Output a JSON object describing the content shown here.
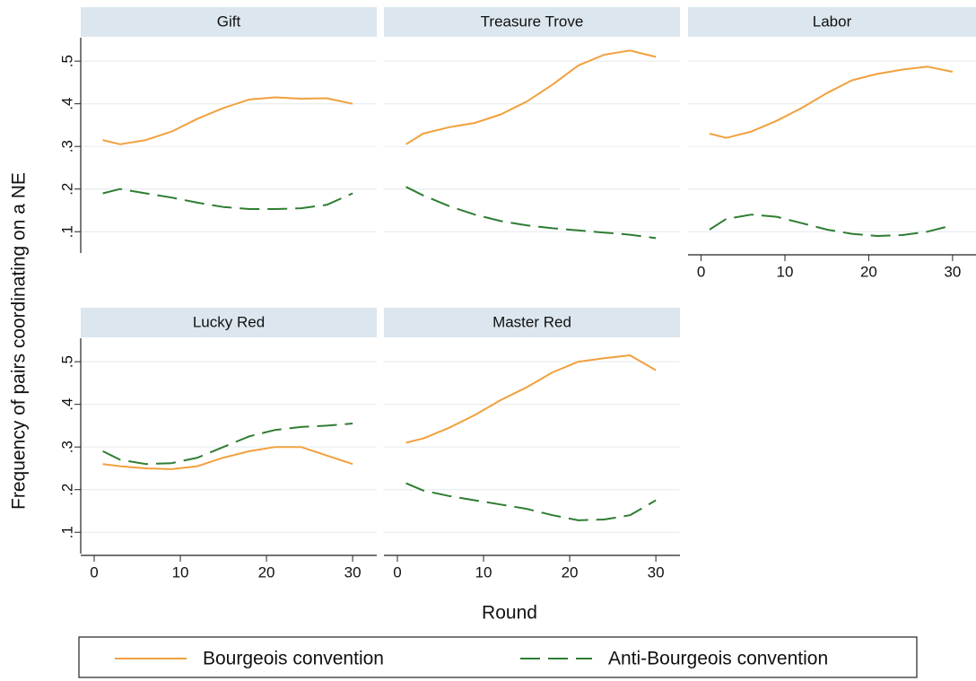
{
  "ylabel": "Frequency of pairs coordinating on a NE",
  "xlabel": "Round",
  "chart_data": [
    {
      "type": "line",
      "title": "Gift",
      "x": [
        1,
        3,
        6,
        9,
        12,
        15,
        18,
        21,
        24,
        27,
        30
      ],
      "series": [
        {
          "name": "Bourgeois convention",
          "color": "#f2a03d",
          "line_style": "solid",
          "values": [
            0.315,
            0.305,
            0.315,
            0.335,
            0.365,
            0.39,
            0.41,
            0.415,
            0.412,
            0.413,
            0.4
          ]
        },
        {
          "name": "Anti-Bourgeois convention",
          "color": "#2e7d32",
          "line_style": "dashed",
          "values": [
            0.19,
            0.2,
            0.19,
            0.18,
            0.168,
            0.158,
            0.153,
            0.153,
            0.155,
            0.163,
            0.19
          ]
        }
      ],
      "xlim": [
        -1.56,
        32.8
      ],
      "ylim": [
        0.05,
        0.555
      ],
      "xticks": [
        0,
        10,
        20,
        30
      ],
      "yticks": [
        {
          "value": 0.1,
          "label": ".1"
        },
        {
          "value": 0.2,
          "label": ".2"
        },
        {
          "value": 0.3,
          "label": ".3"
        },
        {
          "value": 0.4,
          "label": ".4"
        },
        {
          "value": 0.5,
          "label": ".5"
        }
      ],
      "grid": true
    },
    {
      "type": "line",
      "title": "Treasure Trove",
      "x": [
        1,
        3,
        6,
        9,
        12,
        15,
        18,
        21,
        24,
        27,
        30
      ],
      "series": [
        {
          "name": "Bourgeois convention",
          "color": "#f2a03d",
          "line_style": "solid",
          "values": [
            0.305,
            0.33,
            0.345,
            0.355,
            0.375,
            0.405,
            0.445,
            0.49,
            0.515,
            0.525,
            0.51
          ]
        },
        {
          "name": "Anti-Bourgeois convention",
          "color": "#2e7d32",
          "line_style": "dashed",
          "values": [
            0.205,
            0.185,
            0.16,
            0.14,
            0.125,
            0.115,
            0.108,
            0.103,
            0.098,
            0.093,
            0.085
          ]
        }
      ],
      "xlim": [
        -1.56,
        32.8
      ],
      "ylim": [
        0.05,
        0.555
      ],
      "xticks": [
        0,
        10,
        20,
        30
      ],
      "yticks": [
        {
          "value": 0.1,
          "label": ".1"
        },
        {
          "value": 0.2,
          "label": ".2"
        },
        {
          "value": 0.3,
          "label": ".3"
        },
        {
          "value": 0.4,
          "label": ".4"
        },
        {
          "value": 0.5,
          "label": ".5"
        }
      ],
      "grid": true
    },
    {
      "type": "line",
      "title": "Labor",
      "x": [
        1,
        3,
        6,
        9,
        12,
        15,
        18,
        21,
        24,
        27,
        30
      ],
      "series": [
        {
          "name": "Bourgeois convention",
          "color": "#f2a03d",
          "line_style": "solid",
          "values": [
            0.33,
            0.32,
            0.335,
            0.36,
            0.39,
            0.425,
            0.455,
            0.47,
            0.48,
            0.487,
            0.475
          ]
        },
        {
          "name": "Anti-Bourgeois convention",
          "color": "#2e7d32",
          "line_style": "dashed",
          "values": [
            0.105,
            0.13,
            0.14,
            0.135,
            0.12,
            0.105,
            0.095,
            0.09,
            0.092,
            0.1,
            0.115
          ]
        }
      ],
      "xlim": [
        -1.56,
        32.8
      ],
      "ylim": [
        0.05,
        0.555
      ],
      "xticks": [
        0,
        10,
        20,
        30
      ],
      "yticks": [
        {
          "value": 0.1,
          "label": ".1"
        },
        {
          "value": 0.2,
          "label": ".2"
        },
        {
          "value": 0.3,
          "label": ".3"
        },
        {
          "value": 0.4,
          "label": ".4"
        },
        {
          "value": 0.5,
          "label": ".5"
        }
      ],
      "grid": true
    },
    {
      "type": "line",
      "title": "Lucky Red",
      "x": [
        1,
        3,
        6,
        9,
        12,
        15,
        18,
        21,
        24,
        27,
        30
      ],
      "series": [
        {
          "name": "Bourgeois convention",
          "color": "#f2a03d",
          "line_style": "solid",
          "values": [
            0.26,
            0.255,
            0.25,
            0.248,
            0.255,
            0.275,
            0.29,
            0.3,
            0.3,
            0.28,
            0.26
          ]
        },
        {
          "name": "Anti-Bourgeois convention",
          "color": "#2e7d32",
          "line_style": "dashed",
          "values": [
            0.29,
            0.27,
            0.26,
            0.262,
            0.275,
            0.3,
            0.325,
            0.34,
            0.347,
            0.35,
            0.355
          ]
        }
      ],
      "xlim": [
        -1.56,
        32.8
      ],
      "ylim": [
        0.05,
        0.555
      ],
      "xticks": [
        0,
        10,
        20,
        30
      ],
      "yticks": [
        {
          "value": 0.1,
          "label": ".1"
        },
        {
          "value": 0.2,
          "label": ".2"
        },
        {
          "value": 0.3,
          "label": ".3"
        },
        {
          "value": 0.4,
          "label": ".4"
        },
        {
          "value": 0.5,
          "label": ".5"
        }
      ],
      "grid": true
    },
    {
      "type": "line",
      "title": "Master Red",
      "x": [
        1,
        3,
        6,
        9,
        12,
        15,
        18,
        21,
        24,
        27,
        30
      ],
      "series": [
        {
          "name": "Bourgeois convention",
          "color": "#f2a03d",
          "line_style": "solid",
          "values": [
            0.31,
            0.32,
            0.345,
            0.375,
            0.41,
            0.44,
            0.475,
            0.5,
            0.508,
            0.515,
            0.48
          ]
        },
        {
          "name": "Anti-Bourgeois convention",
          "color": "#2e7d32",
          "line_style": "dashed",
          "values": [
            0.215,
            0.198,
            0.185,
            0.175,
            0.165,
            0.155,
            0.14,
            0.128,
            0.13,
            0.14,
            0.175
          ]
        }
      ],
      "xlim": [
        -1.56,
        32.8
      ],
      "ylim": [
        0.05,
        0.555
      ],
      "xticks": [
        0,
        10,
        20,
        30
      ],
      "yticks": [
        {
          "value": 0.1,
          "label": ".1"
        },
        {
          "value": 0.2,
          "label": ".2"
        },
        {
          "value": 0.3,
          "label": ".3"
        },
        {
          "value": 0.4,
          "label": ".4"
        },
        {
          "value": 0.5,
          "label": ".5"
        }
      ],
      "grid": true
    }
  ]
}
